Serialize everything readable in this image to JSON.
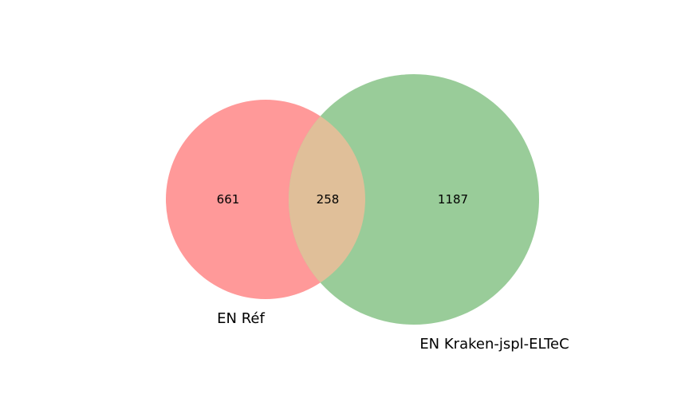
{
  "chart_data": {
    "type": "venn",
    "sets": [
      {
        "name": "EN Réf",
        "color": "#ff9999"
      },
      {
        "name": "EN Kraken-jspl-ELTeC",
        "color": "#99cc99"
      }
    ],
    "regions": {
      "only_a": 661,
      "intersection": 258,
      "only_b": 1187
    },
    "intersection_color": "#e0bf99"
  }
}
